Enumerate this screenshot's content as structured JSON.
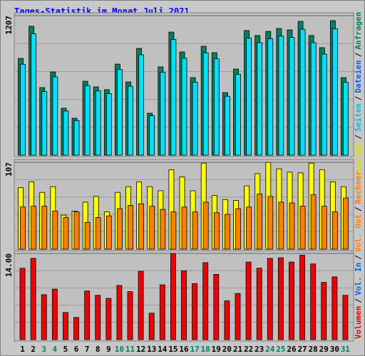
{
  "chart_data": [
    {
      "type": "bar",
      "title": "Tages-Statistik im Monat Juli 2021",
      "categories": [
        "1",
        "2",
        "3",
        "4",
        "5",
        "6",
        "7",
        "8",
        "9",
        "10",
        "11",
        "12",
        "13",
        "14",
        "15",
        "16",
        "17",
        "18",
        "19",
        "20",
        "21",
        "22",
        "23",
        "24",
        "25",
        "26",
        "27",
        "28",
        "29",
        "30",
        "31"
      ],
      "category_colors": [
        "#000000",
        "#000000",
        "#008060",
        "#008060",
        "#000000",
        "#000000",
        "#000000",
        "#000000",
        "#000000",
        "#008060",
        "#008060",
        "#000000",
        "#000000",
        "#000000",
        "#000000",
        "#000000",
        "#008060",
        "#008060",
        "#000000",
        "#000000",
        "#000000",
        "#000000",
        "#000000",
        "#008060",
        "#008060",
        "#000000",
        "#000000",
        "#000000",
        "#000000",
        "#000000",
        "#008060"
      ],
      "legend_separator": "/",
      "series": [
        {
          "name": "Anfragen",
          "color": "#008060",
          "label_color": "#008060",
          "values": [
            837,
            1115,
            585,
            720,
            406,
            320,
            640,
            591,
            567,
            788,
            634,
            924,
            363,
            764,
            1065,
            893,
            671,
            942,
            887,
            542,
            745,
            1078,
            1035,
            1071,
            1096,
            1084,
            1158,
            1035,
            930,
            1164,
            671
          ]
        },
        {
          "name": "Dateien",
          "color": "#00e0ff",
          "label_color": "#0060ff",
          "values": [
            787,
            1050,
            550,
            677,
            382,
            300,
            602,
            556,
            533,
            741,
            596,
            869,
            341,
            718,
            1001,
            839,
            631,
            885,
            834,
            510,
            700,
            1013,
            973,
            1007,
            1030,
            1019,
            1089,
            973,
            874,
            1094,
            631
          ]
        }
      ],
      "legend_extra": [
        {
          "text": "Seiten",
          "color": "#00c0e0"
        }
      ],
      "ylim": [
        0,
        1207
      ],
      "yticks": [
        1207
      ]
    },
    {
      "type": "bar",
      "series": [
        {
          "name": "Besuche",
          "color": "#ffff00",
          "label_color": "#e0e000",
          "values": [
            76,
            83,
            70,
            77,
            42,
            47,
            58,
            65,
            46,
            70,
            77,
            83,
            77,
            72,
            98,
            89,
            72,
            106,
            66,
            61,
            60,
            78,
            93,
            107,
            99,
            95,
            94,
            106,
            98,
            83,
            77
          ]
        },
        {
          "name": "Rechner",
          "color": "#ff8000",
          "label_color": "#ff8000",
          "values": [
            52,
            53,
            53,
            47,
            39,
            46,
            33,
            39,
            41,
            50,
            54,
            56,
            53,
            49,
            46,
            52,
            46,
            58,
            45,
            43,
            50,
            52,
            68,
            65,
            58,
            57,
            53,
            67,
            53,
            46,
            63
          ]
        }
      ],
      "ylim": [
        0,
        107
      ],
      "yticks": [
        107
      ]
    },
    {
      "type": "bar",
      "series": [
        {
          "name": "Volumen",
          "color": "#ee0000",
          "label_color": "#ee0000",
          "values": [
            11.6,
            13.2,
            7.3,
            8.2,
            4.4,
            3.6,
            7.9,
            7.2,
            6.7,
            8.8,
            7.8,
            11.1,
            4.3,
            8.9,
            14.0,
            11.2,
            9.1,
            12.5,
            10.6,
            6.3,
            7.5,
            12.6,
            11.6,
            13.2,
            13.3,
            12.6,
            13.7,
            12.3,
            9.3,
            10.2,
            7.2
          ]
        }
      ],
      "legend_extra": [
        {
          "text": "Vol. In",
          "color": "#0060ff"
        },
        {
          "text": "Vol. Out",
          "color": "#ff8000"
        }
      ],
      "ylim": [
        0,
        14
      ],
      "yticks": [
        {
          "value": 14,
          "label": "14.00"
        }
      ]
    }
  ]
}
